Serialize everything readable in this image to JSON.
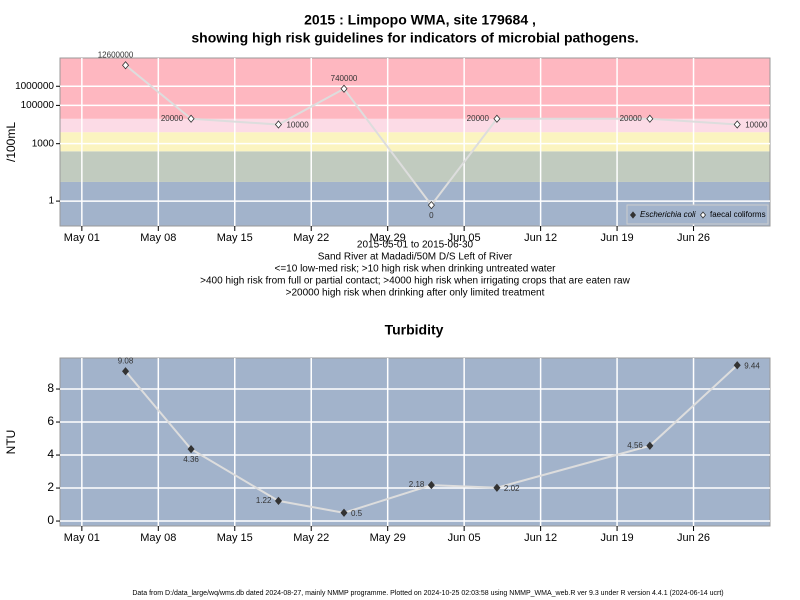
{
  "chart_data": [
    {
      "type": "line",
      "title": "2015 : Limpopo WMA, site 179684 ,",
      "subtitle": "showing high risk guidelines for indicators of microbial pathogens.",
      "y_label": "/100mL",
      "log_y": true,
      "notes": [
        "2015-05-01 to 2015-06-30",
        "Sand River at Madadi/50M D/S Left of River",
        "<=10 low-med risk; >10 high risk when drinking untreated water",
        ">400 high risk from full or partial contact; >4000 high risk when irrigating crops that are eaten raw",
        ">20000 high risk when drinking after only limited treatment"
      ],
      "x": [
        "2015-05-05",
        "2015-05-11",
        "2015-05-19",
        "2015-05-25",
        "2015-06-02",
        "2015-06-08",
        "2015-06-22",
        "2015-06-30"
      ],
      "series": [
        {
          "name": "Escherichia coli",
          "color": "#333333",
          "values": [
            null,
            null,
            null,
            null,
            null,
            null,
            null,
            null
          ]
        },
        {
          "name": "faecal coliforms",
          "color": "#dddddd",
          "values": [
            12600000,
            20000,
            10000,
            740000,
            0,
            20000,
            20000,
            10000
          ]
        }
      ],
      "risk_bands": {
        "thresholds": [
          10,
          400,
          4000,
          20000
        ],
        "colors": [
          "#a2b3cb",
          "#c1cbbf",
          "#fbf4c0",
          "#fcdbe6",
          "#feb7c0"
        ]
      },
      "xlim": [
        "2015-04-29",
        "2015-07-03"
      ],
      "xticks": [
        {
          "value": "2015-05-01",
          "label": "May 01"
        },
        {
          "value": "2015-05-08",
          "label": "May 08"
        },
        {
          "value": "2015-05-15",
          "label": "May 15"
        },
        {
          "value": "2015-05-22",
          "label": "May 22"
        },
        {
          "value": "2015-05-29",
          "label": "May 29"
        },
        {
          "value": "2015-06-05",
          "label": "Jun 05"
        },
        {
          "value": "2015-06-12",
          "label": "Jun 12"
        },
        {
          "value": "2015-06-19",
          "label": "Jun 19"
        },
        {
          "value": "2015-06-26",
          "label": "Jun 26"
        }
      ],
      "ylim": [
        0.05,
        30000000
      ],
      "yticks": [
        1,
        1000,
        100000,
        1000000
      ],
      "grid": true,
      "legend": "bottom-right"
    },
    {
      "type": "line",
      "title": "Turbidity",
      "y_label": "NTU",
      "background": "#a2b3cb",
      "x": [
        "2015-05-05",
        "2015-05-11",
        "2015-05-19",
        "2015-05-25",
        "2015-06-02",
        "2015-06-08",
        "2015-06-22",
        "2015-06-30"
      ],
      "series": [
        {
          "name": "Turbidity",
          "color": "#dddddd",
          "values": [
            9.08,
            4.36,
            1.22,
            0.5,
            2.18,
            2.02,
            4.56,
            9.44
          ]
        }
      ],
      "xlim": [
        "2015-04-29",
        "2015-07-03"
      ],
      "xticks": [
        {
          "value": "2015-05-01",
          "label": "May 01"
        },
        {
          "value": "2015-05-08",
          "label": "May 08"
        },
        {
          "value": "2015-05-15",
          "label": "May 15"
        },
        {
          "value": "2015-05-22",
          "label": "May 22"
        },
        {
          "value": "2015-05-29",
          "label": "May 29"
        },
        {
          "value": "2015-06-05",
          "label": "Jun 05"
        },
        {
          "value": "2015-06-12",
          "label": "Jun 12"
        },
        {
          "value": "2015-06-19",
          "label": "Jun 19"
        },
        {
          "value": "2015-06-26",
          "label": "Jun 26"
        }
      ],
      "ylim": [
        -0.3,
        9.88
      ],
      "yticks": [
        0,
        2,
        4,
        6,
        8
      ],
      "grid": true
    }
  ],
  "footer": "Data from D:/data_large/wq/wms.db dated 2024-08-27, mainly NMMP programme. Plotted on 2024-10-25 02:03:58 using NMMP_WMA_web.R ver 9.3 under R version 4.4.1 (2024-06-14 ucrt)"
}
